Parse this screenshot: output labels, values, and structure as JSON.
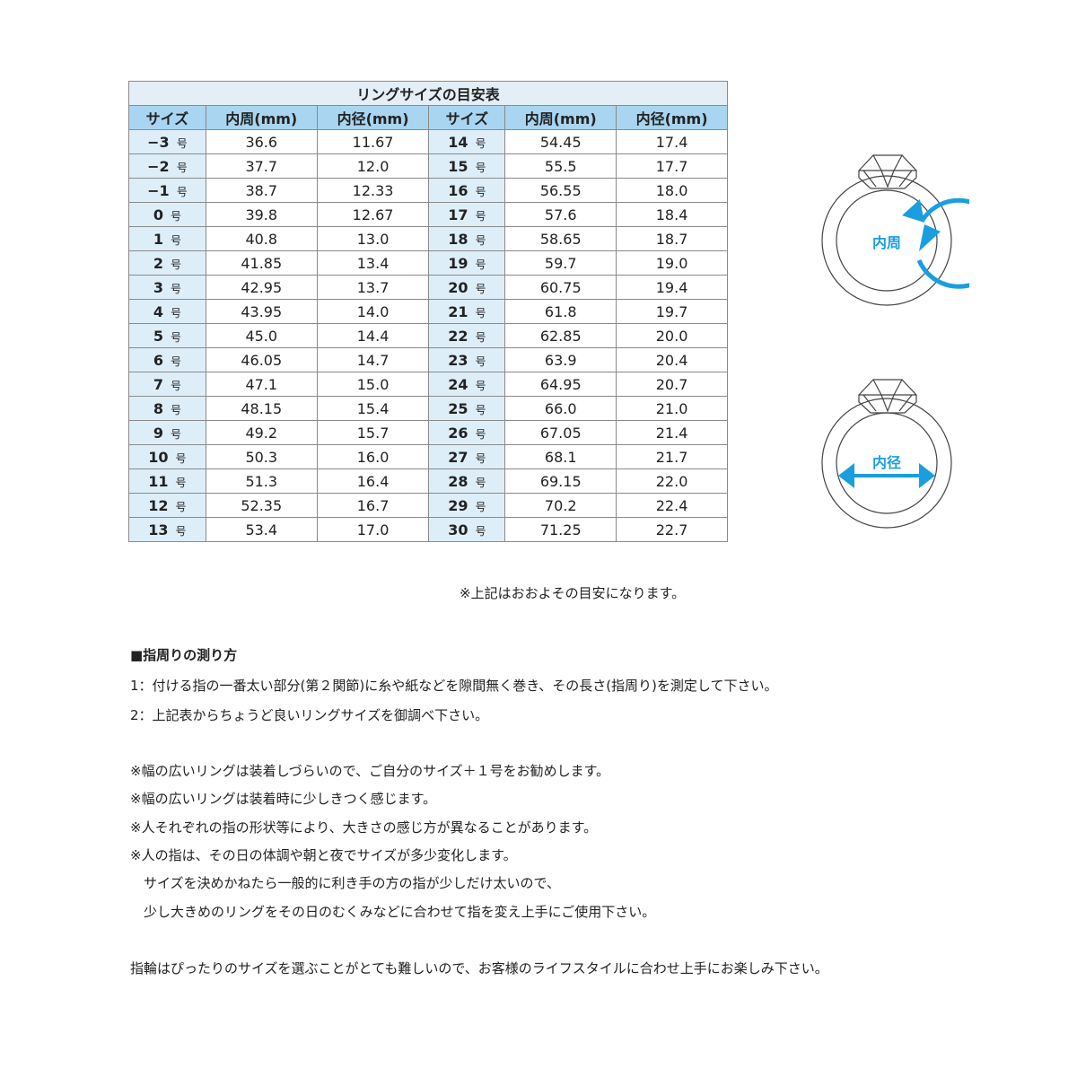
{
  "table": {
    "title": "リングサイズの目安表",
    "headers": [
      "サイズ",
      "内周(mm)",
      "内径(mm)",
      "サイズ",
      "内周(mm)",
      "内径(mm)"
    ],
    "unit": "号",
    "rows": [
      [
        "−3",
        "36.6",
        "11.67",
        "14",
        "54.45",
        "17.4"
      ],
      [
        "−2",
        "37.7",
        "12.0",
        "15",
        "55.5",
        "17.7"
      ],
      [
        "−1",
        "38.7",
        "12.33",
        "16",
        "56.55",
        "18.0"
      ],
      [
        "0",
        "39.8",
        "12.67",
        "17",
        "57.6",
        "18.4"
      ],
      [
        "1",
        "40.8",
        "13.0",
        "18",
        "58.65",
        "18.7"
      ],
      [
        "2",
        "41.85",
        "13.4",
        "19",
        "59.7",
        "19.0"
      ],
      [
        "3",
        "42.95",
        "13.7",
        "20",
        "60.75",
        "19.4"
      ],
      [
        "4",
        "43.95",
        "14.0",
        "21",
        "61.8",
        "19.7"
      ],
      [
        "5",
        "45.0",
        "14.4",
        "22",
        "62.85",
        "20.0"
      ],
      [
        "6",
        "46.05",
        "14.7",
        "23",
        "63.9",
        "20.4"
      ],
      [
        "7",
        "47.1",
        "15.0",
        "24",
        "64.95",
        "20.7"
      ],
      [
        "8",
        "48.15",
        "15.4",
        "25",
        "66.0",
        "21.0"
      ],
      [
        "9",
        "49.2",
        "15.7",
        "26",
        "67.05",
        "21.4"
      ],
      [
        "10",
        "50.3",
        "16.0",
        "27",
        "68.1",
        "21.7"
      ],
      [
        "11",
        "51.3",
        "16.4",
        "28",
        "69.15",
        "22.0"
      ],
      [
        "12",
        "52.35",
        "16.7",
        "29",
        "70.2",
        "22.4"
      ],
      [
        "13",
        "53.4",
        "17.0",
        "30",
        "71.25",
        "22.7"
      ]
    ],
    "footnote": "※上記はおおよその目安になります。"
  },
  "diagrams": {
    "circumference_label": "内周",
    "diameter_label": "内径",
    "accent": "#1a9ee0"
  },
  "howto": {
    "heading": "■指周りの測り方",
    "steps": [
      "1：付ける指の一番太い部分(第２関節)に糸や紙などを隙間無く巻き、その長さ(指周り)を測定して下さい。",
      "2：上記表からちょうど良いリングサイズを御調べ下さい。"
    ]
  },
  "notes": [
    "※幅の広いリングは装着しづらいので、ご自分のサイズ＋１号をお勧めします。",
    "※幅の広いリングは装着時に少しきつく感じます。",
    "※人それぞれの指の形状等により、大きさの感じ方が異なることがあります。",
    "※人の指は、その日の体調や朝と夜でサイズが多少変化します。",
    "　サイズを決めかねたら一般的に利き手の方の指が少しだけ太いので、",
    "　少し大きめのリングをその日のむくみなどに合わせて指を変え上手にご使用下さい。"
  ],
  "closing": "指輪はぴったりのサイズを選ぶことがとても難しいので、お客様のライフスタイルに合わせ上手にお楽しみ下さい。"
}
